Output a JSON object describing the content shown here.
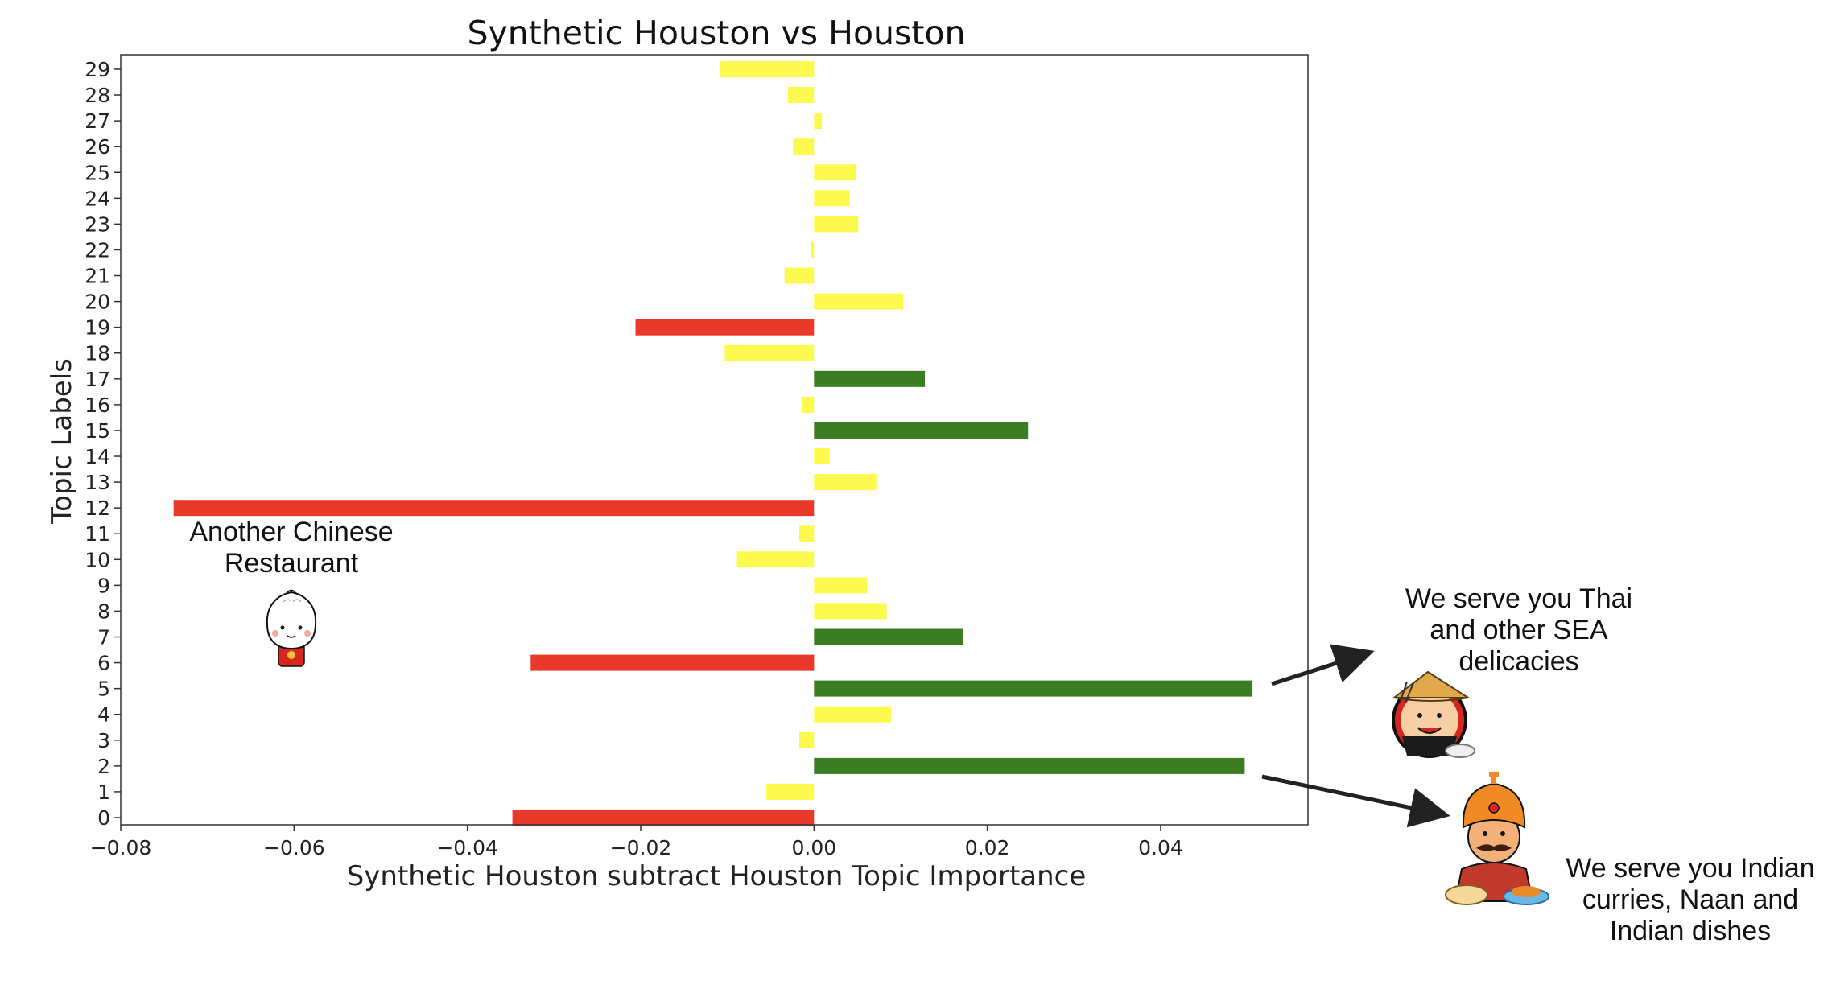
{
  "chart_data": {
    "type": "bar",
    "orientation": "horizontal",
    "title": "Synthetic Houston vs Houston",
    "xlabel": "Synthetic Houston subtract Houston Topic Importance",
    "ylabel": "Topic Labels",
    "xlim": [
      -0.08,
      0.057
    ],
    "x_ticks": [
      -0.08,
      -0.06,
      -0.04,
      -0.02,
      0.0,
      0.02,
      0.04
    ],
    "x_tick_labels": [
      "−0.08",
      "−0.06",
      "−0.04",
      "−0.02",
      "0.00",
      "0.02",
      "0.04"
    ],
    "categories": [
      "0",
      "1",
      "2",
      "3",
      "4",
      "5",
      "6",
      "7",
      "8",
      "9",
      "10",
      "11",
      "12",
      "13",
      "14",
      "15",
      "16",
      "17",
      "18",
      "19",
      "20",
      "21",
      "22",
      "23",
      "24",
      "25",
      "26",
      "27",
      "28",
      "29"
    ],
    "values": [
      -0.0348,
      -0.0055,
      0.0497,
      -0.0017,
      0.0089,
      0.0506,
      -0.0327,
      0.0172,
      0.0084,
      0.0061,
      -0.0089,
      -0.0017,
      -0.0739,
      0.0072,
      0.0018,
      0.0247,
      -0.0014,
      0.0128,
      -0.0103,
      -0.0206,
      0.0103,
      -0.0034,
      -0.0004,
      0.0051,
      0.0041,
      0.0048,
      -0.0024,
      0.0009,
      -0.003,
      -0.0109
    ],
    "colors": {
      "red": "#e8392a",
      "yellow": "#fdfa4f",
      "green": "#3a7d22"
    },
    "bar_colors": [
      "red",
      "yellow",
      "green",
      "yellow",
      "yellow",
      "green",
      "red",
      "green",
      "yellow",
      "yellow",
      "yellow",
      "yellow",
      "red",
      "yellow",
      "yellow",
      "green",
      "yellow",
      "green",
      "yellow",
      "red",
      "yellow",
      "yellow",
      "yellow",
      "yellow",
      "yellow",
      "yellow",
      "yellow",
      "yellow",
      "yellow",
      "yellow"
    ],
    "grid": false
  },
  "annotations": {
    "chinese": {
      "line1": "Another Chinese",
      "line2": "Restaurant",
      "icon": "bun-character-icon"
    },
    "thai": {
      "line1": "We serve you Thai",
      "line2": "and other SEA",
      "line3": "delicacies",
      "icon": "chef-with-hat-icon"
    },
    "indian": {
      "line1": "We serve you Indian",
      "line2": "curries, Naan and",
      "line3": "Indian dishes",
      "icon": "turban-chef-icon"
    }
  }
}
